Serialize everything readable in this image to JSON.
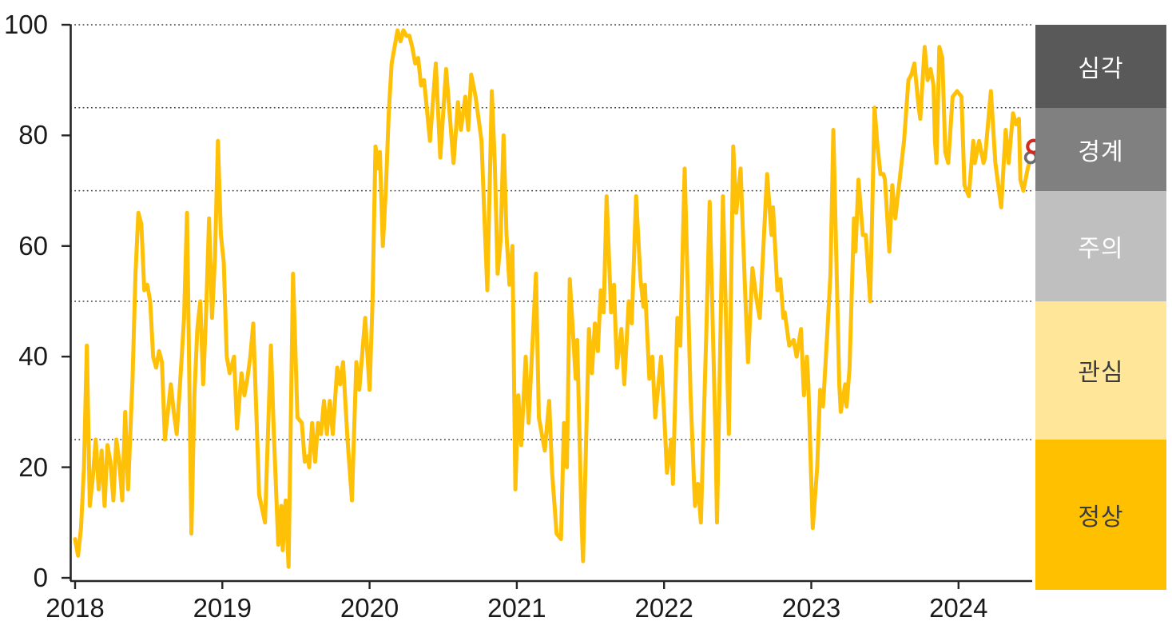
{
  "chart_data": {
    "type": "line",
    "title": "",
    "x_tick_labels": [
      "2018",
      "2019",
      "2020",
      "2021",
      "2022",
      "2023",
      "2024"
    ],
    "x_tick_years": [
      2018,
      2019,
      2020,
      2021,
      2022,
      2023,
      2024
    ],
    "y_tick_labels": [
      "100",
      "80",
      "60",
      "40",
      "20",
      "0"
    ],
    "y_tick_values": [
      100,
      80,
      60,
      40,
      20,
      0
    ],
    "ylim": [
      0,
      100
    ],
    "xlim": [
      2018.0,
      2024.55
    ],
    "grid": "dotted horizontal threshold lines",
    "gridline_levels": [
      100,
      85,
      70,
      50,
      25
    ],
    "line_color": "#FFC008",
    "axis_color": "#262626",
    "bands": [
      {
        "label": "심각",
        "range": [
          85,
          100
        ],
        "color": "#595959",
        "text_color": "#ffffff"
      },
      {
        "label": "경계",
        "range": [
          70,
          85
        ],
        "color": "#808080",
        "text_color": "#ffffff"
      },
      {
        "label": "주의",
        "range": [
          50,
          70
        ],
        "color": "#BFBFBF",
        "text_color": "#ffffff"
      },
      {
        "label": "관심",
        "range": [
          25,
          50
        ],
        "color": "#FFE699",
        "text_color": "#3b3b3b"
      },
      {
        "label": "정상",
        "range": [
          0,
          25
        ],
        "color": "#FFC000",
        "text_color": "#3b3b3b"
      }
    ],
    "markers": [
      {
        "name": "previous-point",
        "x": 2024.49,
        "y": 76,
        "ring_color": "#6E6E6E",
        "fill": "#ffffff"
      },
      {
        "name": "latest-point",
        "x": 2024.51,
        "y": 78,
        "ring_color": "#D42B1E",
        "fill": "#ffffff"
      }
    ],
    "series": [
      {
        "name": "risk-index",
        "points": [
          [
            2018.0,
            7
          ],
          [
            2018.02,
            4
          ],
          [
            2018.04,
            9
          ],
          [
            2018.06,
            20
          ],
          [
            2018.08,
            42
          ],
          [
            2018.1,
            13
          ],
          [
            2018.12,
            18
          ],
          [
            2018.14,
            25
          ],
          [
            2018.16,
            16
          ],
          [
            2018.18,
            23
          ],
          [
            2018.2,
            13
          ],
          [
            2018.22,
            24
          ],
          [
            2018.24,
            21
          ],
          [
            2018.26,
            14
          ],
          [
            2018.28,
            25
          ],
          [
            2018.3,
            21
          ],
          [
            2018.32,
            14
          ],
          [
            2018.34,
            30
          ],
          [
            2018.36,
            16
          ],
          [
            2018.39,
            36
          ],
          [
            2018.41,
            55
          ],
          [
            2018.43,
            66
          ],
          [
            2018.45,
            64
          ],
          [
            2018.47,
            52
          ],
          [
            2018.49,
            53
          ],
          [
            2018.51,
            50
          ],
          [
            2018.53,
            40
          ],
          [
            2018.55,
            38
          ],
          [
            2018.57,
            41
          ],
          [
            2018.59,
            39
          ],
          [
            2018.61,
            25
          ],
          [
            2018.63,
            30
          ],
          [
            2018.65,
            35
          ],
          [
            2018.67,
            30
          ],
          [
            2018.69,
            26
          ],
          [
            2018.71,
            34
          ],
          [
            2018.74,
            47
          ],
          [
            2018.76,
            66
          ],
          [
            2018.79,
            8
          ],
          [
            2018.81,
            33
          ],
          [
            2018.83,
            45
          ],
          [
            2018.85,
            50
          ],
          [
            2018.87,
            35
          ],
          [
            2018.89,
            48
          ],
          [
            2018.91,
            65
          ],
          [
            2018.93,
            47
          ],
          [
            2018.95,
            58
          ],
          [
            2018.97,
            79
          ],
          [
            2018.99,
            62
          ],
          [
            2019.01,
            57
          ],
          [
            2019.03,
            40
          ],
          [
            2019.05,
            37
          ],
          [
            2019.08,
            40
          ],
          [
            2019.1,
            27
          ],
          [
            2019.13,
            37
          ],
          [
            2019.15,
            33
          ],
          [
            2019.17,
            36
          ],
          [
            2019.19,
            40
          ],
          [
            2019.21,
            46
          ],
          [
            2019.25,
            15
          ],
          [
            2019.29,
            10
          ],
          [
            2019.33,
            42
          ],
          [
            2019.35,
            26
          ],
          [
            2019.38,
            6
          ],
          [
            2019.4,
            13
          ],
          [
            2019.41,
            5
          ],
          [
            2019.43,
            14
          ],
          [
            2019.45,
            2
          ],
          [
            2019.48,
            55
          ],
          [
            2019.51,
            29
          ],
          [
            2019.54,
            28
          ],
          [
            2019.56,
            21
          ],
          [
            2019.58,
            22
          ],
          [
            2019.59,
            20
          ],
          [
            2019.61,
            28
          ],
          [
            2019.63,
            21
          ],
          [
            2019.65,
            28
          ],
          [
            2019.67,
            26
          ],
          [
            2019.69,
            32
          ],
          [
            2019.71,
            26
          ],
          [
            2019.73,
            32
          ],
          [
            2019.75,
            26
          ],
          [
            2019.78,
            38
          ],
          [
            2019.8,
            35
          ],
          [
            2019.82,
            39
          ],
          [
            2019.85,
            25
          ],
          [
            2019.88,
            14
          ],
          [
            2019.91,
            39
          ],
          [
            2019.93,
            34
          ],
          [
            2019.97,
            47
          ],
          [
            2020.0,
            34
          ],
          [
            2020.02,
            50
          ],
          [
            2020.04,
            78
          ],
          [
            2020.06,
            74
          ],
          [
            2020.07,
            77
          ],
          [
            2020.09,
            60
          ],
          [
            2020.11,
            70
          ],
          [
            2020.13,
            84
          ],
          [
            2020.15,
            93
          ],
          [
            2020.17,
            96
          ],
          [
            2020.19,
            99
          ],
          [
            2020.21,
            97
          ],
          [
            2020.23,
            99
          ],
          [
            2020.25,
            98
          ],
          [
            2020.27,
            98
          ],
          [
            2020.29,
            96
          ],
          [
            2020.31,
            93
          ],
          [
            2020.33,
            94
          ],
          [
            2020.35,
            89
          ],
          [
            2020.37,
            90
          ],
          [
            2020.41,
            79
          ],
          [
            2020.45,
            93
          ],
          [
            2020.48,
            76
          ],
          [
            2020.52,
            92
          ],
          [
            2020.57,
            75
          ],
          [
            2020.6,
            86
          ],
          [
            2020.62,
            81
          ],
          [
            2020.65,
            87
          ],
          [
            2020.67,
            81
          ],
          [
            2020.69,
            91
          ],
          [
            2020.72,
            87
          ],
          [
            2020.74,
            83
          ],
          [
            2020.76,
            79
          ],
          [
            2020.78,
            65
          ],
          [
            2020.8,
            52
          ],
          [
            2020.83,
            88
          ],
          [
            2020.85,
            75
          ],
          [
            2020.87,
            55
          ],
          [
            2020.89,
            61
          ],
          [
            2020.91,
            80
          ],
          [
            2020.93,
            62
          ],
          [
            2020.95,
            53
          ],
          [
            2020.97,
            60
          ],
          [
            2020.99,
            16
          ],
          [
            2021.01,
            33
          ],
          [
            2021.03,
            24
          ],
          [
            2021.06,
            40
          ],
          [
            2021.08,
            28
          ],
          [
            2021.13,
            55
          ],
          [
            2021.15,
            29
          ],
          [
            2021.19,
            23
          ],
          [
            2021.22,
            32
          ],
          [
            2021.24,
            19
          ],
          [
            2021.27,
            8
          ],
          [
            2021.3,
            7
          ],
          [
            2021.32,
            28
          ],
          [
            2021.34,
            20
          ],
          [
            2021.36,
            54
          ],
          [
            2021.4,
            36
          ],
          [
            2021.41,
            43
          ],
          [
            2021.44,
            10
          ],
          [
            2021.45,
            3
          ],
          [
            2021.49,
            45
          ],
          [
            2021.51,
            37
          ],
          [
            2021.53,
            46
          ],
          [
            2021.55,
            41
          ],
          [
            2021.57,
            52
          ],
          [
            2021.59,
            48
          ],
          [
            2021.61,
            69
          ],
          [
            2021.64,
            48
          ],
          [
            2021.66,
            53
          ],
          [
            2021.68,
            38
          ],
          [
            2021.71,
            45
          ],
          [
            2021.73,
            35
          ],
          [
            2021.76,
            50
          ],
          [
            2021.78,
            46
          ],
          [
            2021.81,
            69
          ],
          [
            2021.84,
            54
          ],
          [
            2021.86,
            49
          ],
          [
            2021.87,
            53
          ],
          [
            2021.9,
            36
          ],
          [
            2021.92,
            40
          ],
          [
            2021.94,
            29
          ],
          [
            2021.98,
            40
          ],
          [
            2022.0,
            30
          ],
          [
            2022.02,
            19
          ],
          [
            2022.05,
            25
          ],
          [
            2022.06,
            17
          ],
          [
            2022.09,
            47
          ],
          [
            2022.11,
            42
          ],
          [
            2022.14,
            74
          ],
          [
            2022.18,
            33
          ],
          [
            2022.21,
            13
          ],
          [
            2022.23,
            17
          ],
          [
            2022.25,
            10
          ],
          [
            2022.29,
            47
          ],
          [
            2022.31,
            68
          ],
          [
            2022.35,
            25
          ],
          [
            2022.36,
            10
          ],
          [
            2022.4,
            69
          ],
          [
            2022.44,
            26
          ],
          [
            2022.47,
            78
          ],
          [
            2022.49,
            66
          ],
          [
            2022.52,
            74
          ],
          [
            2022.55,
            52
          ],
          [
            2022.57,
            39
          ],
          [
            2022.6,
            56
          ],
          [
            2022.63,
            50
          ],
          [
            2022.65,
            47
          ],
          [
            2022.7,
            73
          ],
          [
            2022.73,
            62
          ],
          [
            2022.74,
            67
          ],
          [
            2022.77,
            52
          ],
          [
            2022.79,
            54
          ],
          [
            2022.81,
            47
          ],
          [
            2022.82,
            48
          ],
          [
            2022.85,
            42
          ],
          [
            2022.88,
            43
          ],
          [
            2022.9,
            40
          ],
          [
            2022.93,
            45
          ],
          [
            2022.95,
            33
          ],
          [
            2022.97,
            40
          ],
          [
            2022.98,
            35
          ],
          [
            2023.01,
            9
          ],
          [
            2023.04,
            20
          ],
          [
            2023.06,
            34
          ],
          [
            2023.08,
            31
          ],
          [
            2023.11,
            45
          ],
          [
            2023.13,
            55
          ],
          [
            2023.15,
            81
          ],
          [
            2023.19,
            35
          ],
          [
            2023.2,
            30
          ],
          [
            2023.23,
            35
          ],
          [
            2023.24,
            31
          ],
          [
            2023.26,
            38
          ],
          [
            2023.29,
            65
          ],
          [
            2023.3,
            59
          ],
          [
            2023.32,
            72
          ],
          [
            2023.35,
            62
          ],
          [
            2023.37,
            62
          ],
          [
            2023.4,
            50
          ],
          [
            2023.43,
            85
          ],
          [
            2023.45,
            78
          ],
          [
            2023.47,
            73
          ],
          [
            2023.49,
            73
          ],
          [
            2023.5,
            72
          ],
          [
            2023.53,
            59
          ],
          [
            2023.55,
            71
          ],
          [
            2023.57,
            65
          ],
          [
            2023.6,
            72
          ],
          [
            2023.63,
            79
          ],
          [
            2023.66,
            90
          ],
          [
            2023.68,
            91
          ],
          [
            2023.7,
            93
          ],
          [
            2023.73,
            85
          ],
          [
            2023.74,
            83
          ],
          [
            2023.77,
            96
          ],
          [
            2023.79,
            90
          ],
          [
            2023.81,
            92
          ],
          [
            2023.83,
            89
          ],
          [
            2023.84,
            79
          ],
          [
            2023.85,
            75
          ],
          [
            2023.87,
            96
          ],
          [
            2023.89,
            94
          ],
          [
            2023.91,
            77
          ],
          [
            2023.93,
            75
          ],
          [
            2023.96,
            87
          ],
          [
            2023.99,
            88
          ],
          [
            2024.02,
            87
          ],
          [
            2024.04,
            71
          ],
          [
            2024.07,
            69
          ],
          [
            2024.1,
            79
          ],
          [
            2024.11,
            75
          ],
          [
            2024.14,
            79
          ],
          [
            2024.17,
            75
          ],
          [
            2024.18,
            76
          ],
          [
            2024.22,
            88
          ],
          [
            2024.25,
            75
          ],
          [
            2024.29,
            67
          ],
          [
            2024.32,
            81
          ],
          [
            2024.34,
            75
          ],
          [
            2024.37,
            84
          ],
          [
            2024.39,
            82
          ],
          [
            2024.41,
            83
          ],
          [
            2024.42,
            72
          ],
          [
            2024.44,
            70
          ],
          [
            2024.47,
            74
          ],
          [
            2024.49,
            76
          ],
          [
            2024.51,
            78
          ]
        ]
      }
    ]
  }
}
